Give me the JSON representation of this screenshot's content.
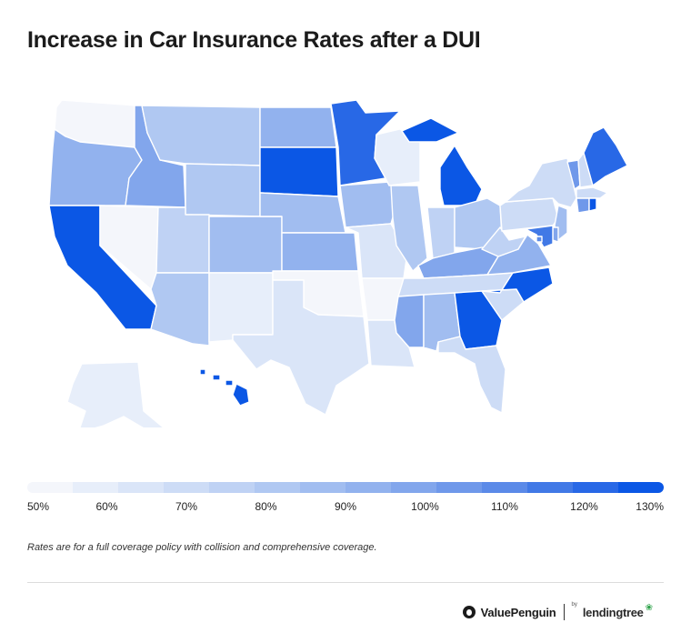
{
  "title": "Increase in Car Insurance Rates after a DUI",
  "map": {
    "legend_ticks": [
      "50%",
      "60%",
      "70%",
      "80%",
      "90%",
      "100%",
      "110%",
      "120%",
      "130%"
    ],
    "scale_colors": [
      "#f4f6fb",
      "#e7eefa",
      "#dae5f8",
      "#cddcf6",
      "#bfd2f4",
      "#b0c8f2",
      "#a1bdf0",
      "#92b2ee",
      "#82a6ec",
      "#6f98ea",
      "#5b8ae8",
      "#4179e6",
      "#2868e6",
      "#0b57e5"
    ],
    "states": [
      {
        "code": "WA",
        "level": 0
      },
      {
        "code": "OR",
        "level": 7
      },
      {
        "code": "CA",
        "level": 13
      },
      {
        "code": "NV",
        "level": 0
      },
      {
        "code": "ID",
        "level": 8
      },
      {
        "code": "MT",
        "level": 5
      },
      {
        "code": "WY",
        "level": 5
      },
      {
        "code": "UT",
        "level": 4
      },
      {
        "code": "AZ",
        "level": 5
      },
      {
        "code": "CO",
        "level": 6
      },
      {
        "code": "NM",
        "level": 1
      },
      {
        "code": "ND",
        "level": 7
      },
      {
        "code": "SD",
        "level": 13
      },
      {
        "code": "NE",
        "level": 6
      },
      {
        "code": "KS",
        "level": 7
      },
      {
        "code": "OK",
        "level": 0
      },
      {
        "code": "TX",
        "level": 2
      },
      {
        "code": "MN",
        "level": 12
      },
      {
        "code": "IA",
        "level": 6
      },
      {
        "code": "MO",
        "level": 2
      },
      {
        "code": "AR",
        "level": 0
      },
      {
        "code": "LA",
        "level": 2
      },
      {
        "code": "WI",
        "level": 1
      },
      {
        "code": "IL",
        "level": 5
      },
      {
        "code": "MI",
        "level": 13
      },
      {
        "code": "IN",
        "level": 4
      },
      {
        "code": "OH",
        "level": 5
      },
      {
        "code": "KY",
        "level": 8
      },
      {
        "code": "TN",
        "level": 3
      },
      {
        "code": "MS",
        "level": 8
      },
      {
        "code": "AL",
        "level": 6
      },
      {
        "code": "GA",
        "level": 13
      },
      {
        "code": "FL",
        "level": 3
      },
      {
        "code": "SC",
        "level": 3
      },
      {
        "code": "NC",
        "level": 13
      },
      {
        "code": "VA",
        "level": 7
      },
      {
        "code": "WV",
        "level": 4
      },
      {
        "code": "PA",
        "level": 3
      },
      {
        "code": "NY",
        "level": 3
      },
      {
        "code": "VT",
        "level": 9
      },
      {
        "code": "NH",
        "level": 3
      },
      {
        "code": "ME",
        "level": 12
      },
      {
        "code": "MA",
        "level": 3
      },
      {
        "code": "CT",
        "level": 9
      },
      {
        "code": "RI",
        "level": 13
      },
      {
        "code": "NJ",
        "level": 6
      },
      {
        "code": "DE",
        "level": 8
      },
      {
        "code": "MD",
        "level": 11
      },
      {
        "code": "DC",
        "level": 10
      },
      {
        "code": "AK",
        "level": 1
      },
      {
        "code": "HI",
        "level": 13
      }
    ]
  },
  "footnote": "Rates are for a full coverage policy with collision and comprehensive coverage.",
  "brand": {
    "primary": "ValuePenguin",
    "by": "by",
    "partner": "lendingtree"
  }
}
